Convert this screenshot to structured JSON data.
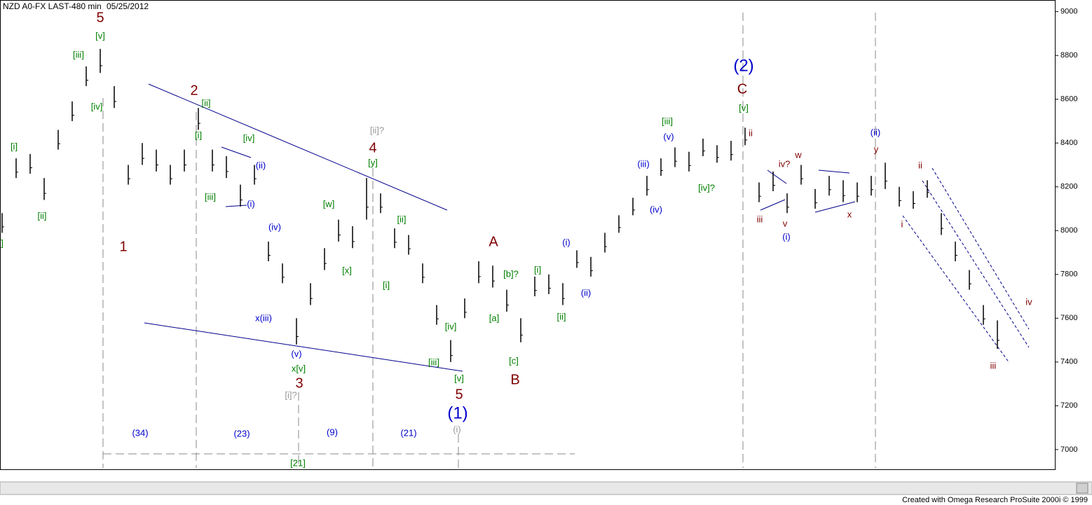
{
  "chart_data": {
    "type": "ohlc",
    "title": "NZD A0-FX LAST-480 min",
    "date": "05/25/2012",
    "footer": "Created with Omega Research ProSuite 2000i © 1999",
    "color": "#000000",
    "grid": false,
    "ylim": [
      6910,
      9050
    ],
    "yticks": [
      7000,
      7200,
      7400,
      7600,
      7800,
      8000,
      8200,
      8400,
      8600,
      8800,
      9000
    ],
    "high": [
      8080,
      8330,
      8350,
      8240,
      8460,
      8590,
      8750,
      8830,
      8660,
      8300,
      8400,
      8370,
      8300,
      8370,
      8560,
      8370,
      8340,
      8210,
      8300,
      7950,
      7850,
      7600,
      7760,
      7920,
      8050,
      8020,
      8240,
      8170,
      8010,
      7980,
      7850,
      7660,
      7500,
      7690,
      7860,
      7840,
      7730,
      7600,
      7790,
      7800,
      7760,
      7910,
      7880,
      7990,
      8070,
      8150,
      8250,
      8330,
      8380,
      8360,
      8420,
      8390,
      8410,
      8470,
      8220,
      8270,
      8170,
      8300,
      8190,
      8250,
      8230,
      8220,
      8250,
      8310,
      8200,
      8180,
      8230,
      8080,
      7950,
      7820,
      7660,
      7590
    ],
    "low": [
      7990,
      8240,
      8260,
      8140,
      8370,
      8500,
      8660,
      8720,
      8560,
      8210,
      8300,
      8270,
      8210,
      8270,
      8460,
      8270,
      8240,
      8110,
      8210,
      7860,
      7760,
      7480,
      7660,
      7820,
      7950,
      7920,
      8050,
      8080,
      7920,
      7890,
      7760,
      7570,
      7400,
      7600,
      7760,
      7740,
      7630,
      7490,
      7700,
      7710,
      7660,
      7830,
      7790,
      7900,
      7990,
      8070,
      8160,
      8250,
      8290,
      8270,
      8340,
      8310,
      8320,
      8390,
      8130,
      8180,
      8080,
      8210,
      8100,
      8160,
      8130,
      8130,
      8160,
      8190,
      8110,
      8100,
      8150,
      7980,
      7860,
      7730,
      7570,
      7460
    ],
    "annotations": [
      {
        "text": "5",
        "color": "#800000"
      },
      {
        "text": "[v]",
        "color": "#008000"
      },
      {
        "text": "[iii]",
        "color": "#008000"
      },
      {
        "text": "[iv]",
        "color": "#008000"
      },
      {
        "text": "[i]",
        "color": "#008000"
      },
      {
        "text": "[ii]",
        "color": "#008000"
      },
      {
        "text": "1",
        "color": "#800000"
      },
      {
        "text": "2",
        "color": "#800000"
      },
      {
        "text": "[ii]",
        "color": "#008000"
      },
      {
        "text": "[i]",
        "color": "#008000"
      },
      {
        "text": "[iv]",
        "color": "#008000"
      },
      {
        "text": "[iii]",
        "color": "#008000"
      },
      {
        "text": "(ii)",
        "color": "#0000cc"
      },
      {
        "text": "(i)",
        "color": "#0000cc"
      },
      {
        "text": "(iv)",
        "color": "#0000cc"
      },
      {
        "text": "x(iii)",
        "color": "#0000cc"
      },
      {
        "text": "(v)",
        "color": "#0000cc"
      },
      {
        "text": "x[v]",
        "color": "#008000"
      },
      {
        "text": "3",
        "color": "#800000"
      },
      {
        "text": "[i]?",
        "color": "#999999"
      },
      {
        "text": "[ii]?",
        "color": "#999999"
      },
      {
        "text": "4",
        "color": "#800000"
      },
      {
        "text": "[y]",
        "color": "#008000"
      },
      {
        "text": "[w]",
        "color": "#008000"
      },
      {
        "text": "[x]",
        "color": "#008000"
      },
      {
        "text": "[ii]",
        "color": "#008000"
      },
      {
        "text": "[i]",
        "color": "#008000"
      },
      {
        "text": "[iv]",
        "color": "#008000"
      },
      {
        "text": "[iii]",
        "color": "#008000"
      },
      {
        "text": "[v]",
        "color": "#008000"
      },
      {
        "text": "5",
        "color": "#800000"
      },
      {
        "text": "(1)",
        "color": "#0000cc"
      },
      {
        "text": "(i)",
        "color": "#999999"
      },
      {
        "text": "A",
        "color": "#800000"
      },
      {
        "text": "[b]?",
        "color": "#008000"
      },
      {
        "text": "[a]",
        "color": "#008000"
      },
      {
        "text": "[c]",
        "color": "#008000"
      },
      {
        "text": "B",
        "color": "#800000"
      },
      {
        "text": "[i]",
        "color": "#008000"
      },
      {
        "text": "[ii]",
        "color": "#008000"
      },
      {
        "text": "(i)",
        "color": "#0000cc"
      },
      {
        "text": "(ii)",
        "color": "#0000cc"
      },
      {
        "text": "(iii)",
        "color": "#0000cc"
      },
      {
        "text": "(iv)",
        "color": "#0000cc"
      },
      {
        "text": "(v)",
        "color": "#0000cc"
      },
      {
        "text": "[iii]",
        "color": "#008000"
      },
      {
        "text": "[iv]?",
        "color": "#008000"
      },
      {
        "text": "(2)",
        "color": "#0000cc"
      },
      {
        "text": "C",
        "color": "#800000"
      },
      {
        "text": "[v]",
        "color": "#008000"
      },
      {
        "text": "ii",
        "color": "#800000"
      },
      {
        "text": "iii",
        "color": "#800000"
      },
      {
        "text": "iv?",
        "color": "#800000"
      },
      {
        "text": "w",
        "color": "#800000"
      },
      {
        "text": "v",
        "color": "#800000"
      },
      {
        "text": "(i)",
        "color": "#0000cc"
      },
      {
        "text": "x",
        "color": "#800000"
      },
      {
        "text": "(ii)",
        "color": "#0000cc"
      },
      {
        "text": "y",
        "color": "#800000"
      },
      {
        "text": "ii",
        "color": "#800000"
      },
      {
        "text": "i",
        "color": "#800000"
      },
      {
        "text": "iv",
        "color": "#800000"
      },
      {
        "text": "iii",
        "color": "#800000"
      },
      {
        "text": "(34)",
        "color": "#0000cc"
      },
      {
        "text": "(23)",
        "color": "#0000cc"
      },
      {
        "text": "(9)",
        "color": "#0000cc"
      },
      {
        "text": "(21)",
        "color": "#0000cc"
      },
      {
        "text": "[21]",
        "color": "#008000"
      },
      {
        "text": "]",
        "color": "#008000"
      }
    ]
  }
}
